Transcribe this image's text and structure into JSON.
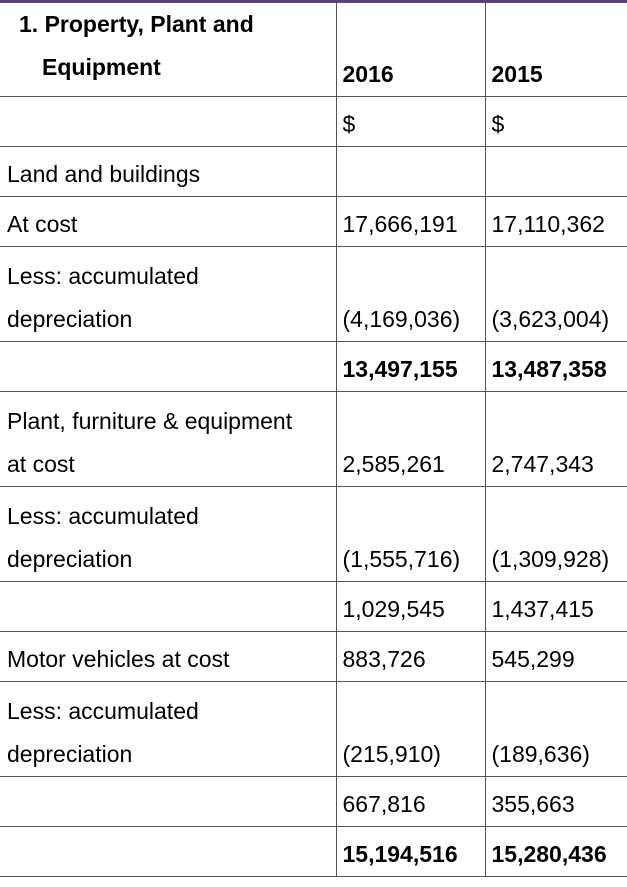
{
  "header": {
    "section_number": "1.",
    "title_line1": "Property, Plant and",
    "title_line2": "Equipment",
    "year1": "2016",
    "year2": "2015"
  },
  "currency_row": {
    "c1": "$",
    "c2": "$"
  },
  "rows": [
    {
      "label": "Land and buildings",
      "v1": "",
      "v2": ""
    },
    {
      "label": "At cost",
      "v1": "17,666,191",
      "v2": "17,110,362"
    },
    {
      "label_line1": "Less: accumulated",
      "label_line2": "depreciation",
      "v1": "(4,169,036)",
      "v2": "(3,623,004)"
    },
    {
      "label": "",
      "v1": "13,497,155",
      "v2": "13,487,358"
    },
    {
      "label_line1": "Plant, furniture & equipment",
      "label_line2": "at cost",
      "v1": "2,585,261",
      "v2": "2,747,343"
    },
    {
      "label_line1": "Less: accumulated",
      "label_line2": "depreciation",
      "v1": "(1,555,716)",
      "v2": "(1,309,928)"
    },
    {
      "label": "",
      "v1": "1,029,545",
      "v2": "1,437,415"
    },
    {
      "label": "Motor vehicles at cost",
      "v1": "883,726",
      "v2": "545,299"
    },
    {
      "label_line1": "Less: accumulated",
      "label_line2": "depreciation",
      "v1": "(215,910)",
      "v2": "(189,636)"
    },
    {
      "label": "",
      "v1": "667,816",
      "v2": "355,663"
    },
    {
      "label": "",
      "v1": "15,194,516",
      "v2": "15,280,436"
    }
  ]
}
